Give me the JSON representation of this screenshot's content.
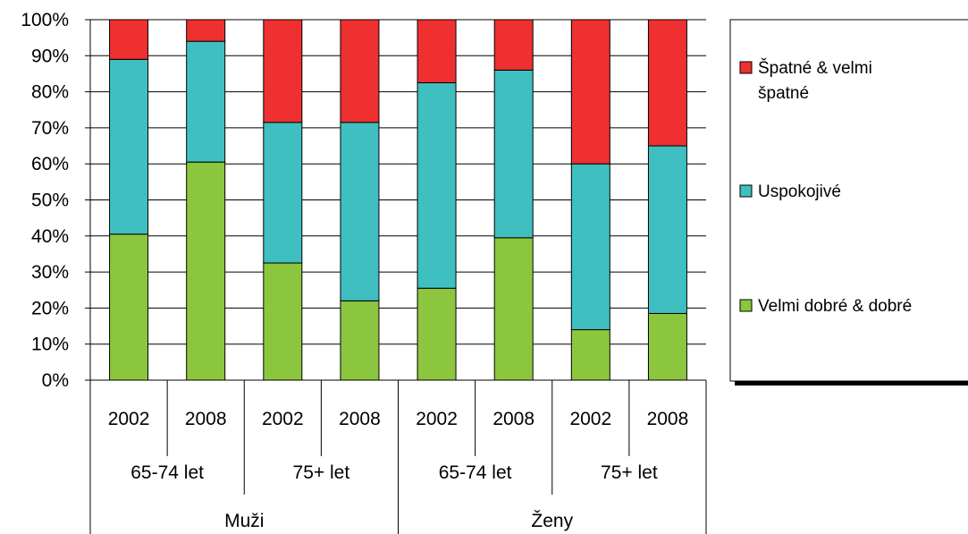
{
  "chart_data": {
    "type": "bar",
    "stacked": true,
    "percent": true,
    "ylim": [
      0,
      100
    ],
    "y_ticks": [
      "0%",
      "10%",
      "20%",
      "30%",
      "40%",
      "50%",
      "60%",
      "70%",
      "80%",
      "90%",
      "100%"
    ],
    "grid": true,
    "legend_position": "right",
    "categories": [
      "2002",
      "2008",
      "2002",
      "2008",
      "2002",
      "2008",
      "2002",
      "2008"
    ],
    "age_groups": [
      "65-74 let",
      "75+ let",
      "65-74 let",
      "75+ let"
    ],
    "sexes": [
      "Muži",
      "Ženy"
    ],
    "series": [
      {
        "name": "Velmi dobré & dobré",
        "color": "#8cc63e",
        "values": [
          40.5,
          60.5,
          32.5,
          22,
          25.5,
          39.5,
          14,
          18.5
        ]
      },
      {
        "name": "Uspokojivé",
        "color": "#3fbfbf",
        "values": [
          48.5,
          33.5,
          39,
          49.5,
          57,
          46.5,
          46,
          46.5
        ]
      },
      {
        "name": "Špatné & velmi špatné",
        "color": "#ee3030",
        "values": [
          11,
          6,
          28.5,
          28.5,
          17.5,
          14,
          40,
          35
        ]
      }
    ],
    "legend": {
      "entries": [
        {
          "series": "Špatné & velmi špatné",
          "lines": [
            "Špatné & velmi",
            "špatné"
          ]
        },
        {
          "series": "Uspokojivé",
          "lines": [
            "Uspokojivé"
          ]
        },
        {
          "series": "Velmi dobré & dobré",
          "lines": [
            "Velmi dobré & dobré"
          ]
        }
      ]
    }
  }
}
